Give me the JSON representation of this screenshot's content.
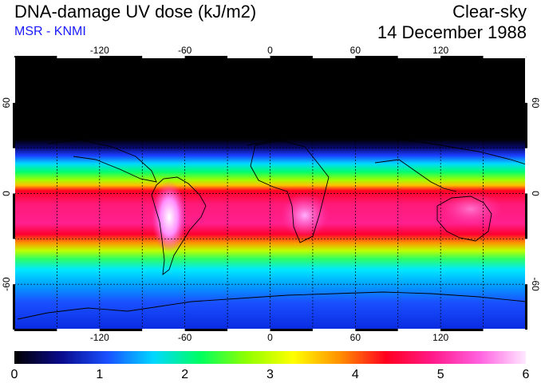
{
  "header": {
    "title": "DNA-damage UV dose (kJ/m2)",
    "source": "MSR - KNMI",
    "condition": "Clear-sky",
    "date": "14 December 1988"
  },
  "map": {
    "lon_ticks": [
      "-120",
      "-60",
      "0",
      "60",
      "120"
    ],
    "lat_ticks": [
      "60",
      "0",
      "-60"
    ],
    "lon_range": [
      -180,
      180
    ],
    "lat_range": [
      -90,
      90
    ],
    "grid_lons": [
      -150,
      -120,
      -90,
      -60,
      -30,
      0,
      30,
      60,
      90,
      120,
      150
    ],
    "grid_lats": [
      -60,
      -30,
      0,
      30,
      60
    ]
  },
  "colorbar": {
    "min": 0,
    "max": 6,
    "labels": [
      "0",
      "1",
      "2",
      "3",
      "4",
      "5",
      "6"
    ],
    "colors": [
      "#000000",
      "#0a0a8c",
      "#1a50ff",
      "#00d8ff",
      "#00ff60",
      "#90ff00",
      "#ffff00",
      "#ff9000",
      "#ff0020",
      "#ff1a8a",
      "#ff60e0",
      "#ffe8ff"
    ]
  }
}
